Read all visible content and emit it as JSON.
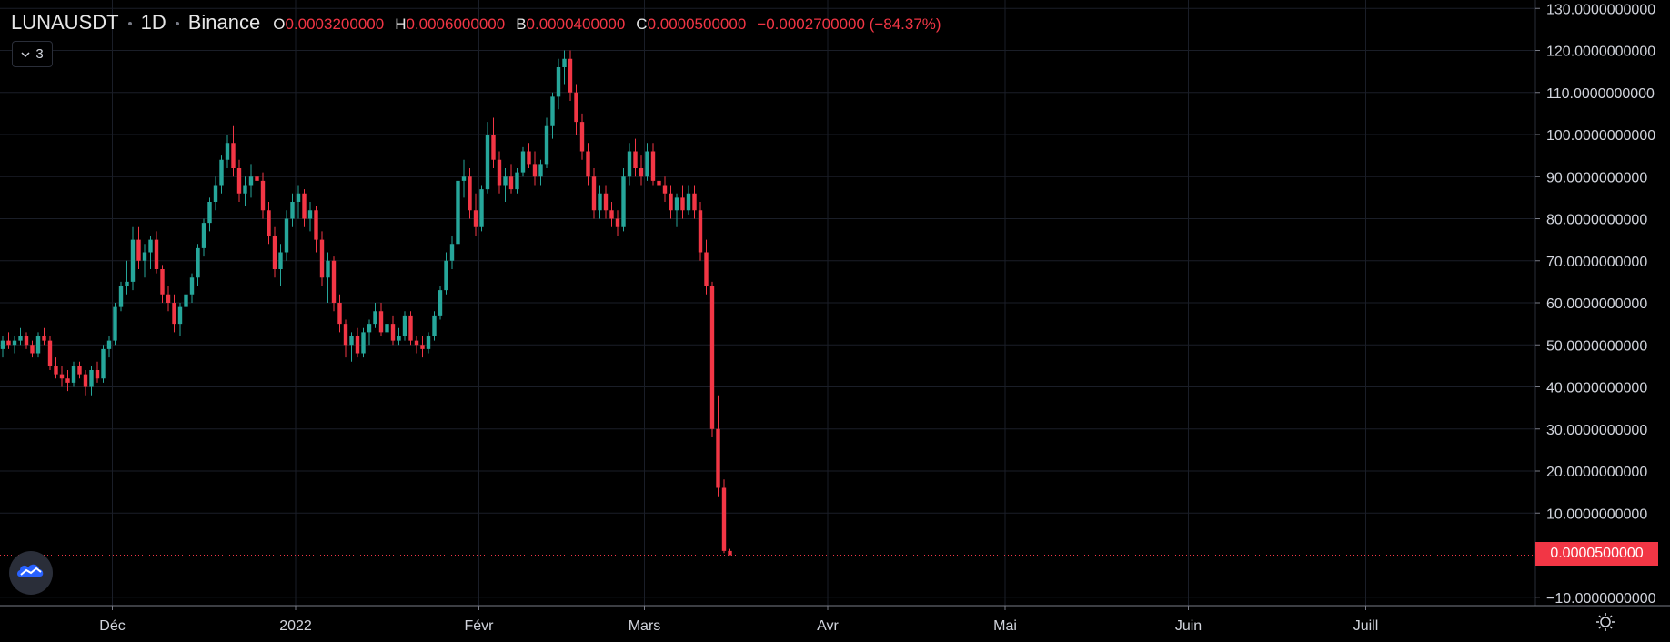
{
  "header": {
    "symbol": "LUNAUSDT",
    "interval": "1D",
    "exchange": "Binance",
    "open_label": "O",
    "open": "0.0003200000",
    "high_label": "H",
    "high": "0.0006000000",
    "low_label": "B",
    "low": "0.0000400000",
    "close_label": "C",
    "close": "0.0000500000",
    "change": "−0.0002700000 (−84.37%)"
  },
  "collapse_button": {
    "count": "3"
  },
  "last_price": "0.0000500000",
  "colors": {
    "up": "#26a69a",
    "down": "#f23645",
    "grid": "#1a1e28",
    "text": "#d1d4dc",
    "background": "#000000"
  },
  "icons": {
    "collapse": "chevron-down-icon",
    "logo": "tradingview-cloud-icon",
    "settings": "gear-icon"
  },
  "chart_data": {
    "type": "candlestick",
    "title": "LUNAUSDT · 1D · Binance",
    "ylim": [
      -12,
      132
    ],
    "x_range": [
      "2021-11-12",
      "2022-07-27"
    ],
    "y_ticks": [
      -10,
      10,
      20,
      30,
      40,
      50,
      60,
      70,
      80,
      90,
      100,
      110,
      120,
      130
    ],
    "y_tick_labels": [
      "−10.0000000000",
      "10.0000000000",
      "20.0000000000",
      "30.0000000000",
      "40.0000000000",
      "50.0000000000",
      "60.0000000000",
      "70.0000000000",
      "80.0000000000",
      "90.0000000000",
      "100.0000000000",
      "110.0000000000",
      "120.0000000000",
      "130.0000000000"
    ],
    "x_ticks": [
      "2021-12-01",
      "2022-01-01",
      "2022-02-01",
      "2022-03-01",
      "2022-04-01",
      "2022-05-01",
      "2022-06-01",
      "2022-07-01"
    ],
    "x_tick_labels": [
      "Déc",
      "2022",
      "Févr",
      "Mars",
      "Avr",
      "Mai",
      "Juin",
      "Juill"
    ],
    "grid": true,
    "start_date": "2021-11-12",
    "ohlc": [
      [
        49,
        52,
        47,
        51
      ],
      [
        51,
        53,
        49,
        50
      ],
      [
        50,
        52,
        48,
        51
      ],
      [
        51,
        54,
        50,
        52
      ],
      [
        52,
        53,
        49,
        50
      ],
      [
        50,
        51,
        47,
        48
      ],
      [
        48,
        53,
        47,
        52
      ],
      [
        52,
        54,
        50,
        51
      ],
      [
        51,
        52,
        44,
        45
      ],
      [
        45,
        47,
        42,
        43
      ],
      [
        43,
        45,
        40,
        42
      ],
      [
        42,
        44,
        39,
        41
      ],
      [
        41,
        46,
        40,
        45
      ],
      [
        45,
        46,
        42,
        43
      ],
      [
        43,
        44,
        38,
        40
      ],
      [
        40,
        45,
        38,
        44
      ],
      [
        44,
        46,
        41,
        42
      ],
      [
        42,
        50,
        41,
        49
      ],
      [
        49,
        52,
        47,
        51
      ],
      [
        51,
        60,
        50,
        59
      ],
      [
        59,
        65,
        58,
        64
      ],
      [
        64,
        70,
        62,
        65
      ],
      [
        65,
        78,
        63,
        75
      ],
      [
        75,
        78,
        68,
        70
      ],
      [
        70,
        74,
        66,
        72
      ],
      [
        72,
        76,
        68,
        75
      ],
      [
        75,
        77,
        67,
        68
      ],
      [
        68,
        69,
        60,
        62
      ],
      [
        62,
        64,
        58,
        60
      ],
      [
        60,
        62,
        53,
        55
      ],
      [
        55,
        60,
        52,
        59
      ],
      [
        59,
        63,
        57,
        62
      ],
      [
        62,
        67,
        60,
        66
      ],
      [
        66,
        74,
        64,
        73
      ],
      [
        73,
        80,
        71,
        79
      ],
      [
        79,
        85,
        77,
        84
      ],
      [
        84,
        90,
        82,
        88
      ],
      [
        88,
        95,
        86,
        94
      ],
      [
        94,
        100,
        92,
        98
      ],
      [
        98,
        102,
        90,
        92
      ],
      [
        92,
        94,
        84,
        86
      ],
      [
        86,
        90,
        83,
        88
      ],
      [
        88,
        93,
        85,
        90
      ],
      [
        90,
        94,
        86,
        89
      ],
      [
        89,
        91,
        80,
        82
      ],
      [
        82,
        84,
        74,
        76
      ],
      [
        76,
        78,
        66,
        68
      ],
      [
        68,
        74,
        64,
        72
      ],
      [
        72,
        82,
        70,
        80
      ],
      [
        80,
        86,
        78,
        84
      ],
      [
        84,
        88,
        80,
        86
      ],
      [
        86,
        87,
        78,
        80
      ],
      [
        80,
        84,
        77,
        82
      ],
      [
        82,
        83,
        72,
        75
      ],
      [
        75,
        77,
        64,
        66
      ],
      [
        66,
        72,
        60,
        70
      ],
      [
        70,
        71,
        58,
        60
      ],
      [
        60,
        62,
        53,
        55
      ],
      [
        55,
        56,
        47,
        50
      ],
      [
        50,
        53,
        46,
        52
      ],
      [
        52,
        54,
        47,
        48
      ],
      [
        48,
        54,
        47,
        53
      ],
      [
        53,
        56,
        50,
        55
      ],
      [
        55,
        60,
        54,
        58
      ],
      [
        58,
        60,
        52,
        53
      ],
      [
        53,
        56,
        51,
        55
      ],
      [
        55,
        57,
        50,
        51
      ],
      [
        51,
        54,
        50,
        52
      ],
      [
        52,
        58,
        51,
        57
      ],
      [
        57,
        58,
        50,
        51
      ],
      [
        51,
        52,
        48,
        50
      ],
      [
        50,
        52,
        47,
        49
      ],
      [
        49,
        53,
        48,
        52
      ],
      [
        52,
        58,
        51,
        57
      ],
      [
        57,
        64,
        56,
        63
      ],
      [
        63,
        72,
        62,
        70
      ],
      [
        70,
        76,
        68,
        74
      ],
      [
        74,
        90,
        73,
        89
      ],
      [
        89,
        94,
        85,
        90
      ],
      [
        90,
        92,
        80,
        82
      ],
      [
        82,
        86,
        76,
        78
      ],
      [
        78,
        88,
        77,
        87
      ],
      [
        87,
        103,
        86,
        100
      ],
      [
        100,
        104,
        92,
        94
      ],
      [
        94,
        96,
        86,
        88
      ],
      [
        88,
        92,
        84,
        90
      ],
      [
        90,
        93,
        86,
        87
      ],
      [
        87,
        92,
        86,
        91
      ],
      [
        91,
        97,
        90,
        96
      ],
      [
        96,
        98,
        92,
        93
      ],
      [
        93,
        96,
        88,
        90
      ],
      [
        90,
        94,
        88,
        93
      ],
      [
        93,
        104,
        92,
        102
      ],
      [
        102,
        110,
        99,
        109
      ],
      [
        109,
        118,
        106,
        116
      ],
      [
        116,
        120,
        112,
        118
      ],
      [
        118,
        120,
        108,
        110
      ],
      [
        110,
        112,
        100,
        103
      ],
      [
        103,
        105,
        94,
        96
      ],
      [
        96,
        98,
        88,
        90
      ],
      [
        90,
        92,
        80,
        82
      ],
      [
        82,
        88,
        80,
        86
      ],
      [
        86,
        88,
        80,
        82
      ],
      [
        82,
        84,
        78,
        80
      ],
      [
        80,
        82,
        76,
        78
      ],
      [
        78,
        92,
        77,
        90
      ],
      [
        90,
        98,
        88,
        96
      ],
      [
        96,
        99,
        90,
        92
      ],
      [
        92,
        95,
        88,
        90
      ],
      [
        90,
        98,
        89,
        96
      ],
      [
        96,
        98,
        88,
        89
      ],
      [
        89,
        91,
        86,
        88
      ],
      [
        88,
        90,
        84,
        86
      ],
      [
        86,
        88,
        80,
        82
      ],
      [
        82,
        86,
        78,
        85
      ],
      [
        85,
        88,
        80,
        82
      ],
      [
        82,
        88,
        81,
        86
      ],
      [
        86,
        88,
        80,
        82
      ],
      [
        82,
        84,
        70,
        72
      ],
      [
        72,
        75,
        62,
        64
      ],
      [
        64,
        65,
        28,
        30
      ],
      [
        30,
        38,
        14,
        16
      ],
      [
        16,
        18,
        0.5,
        1
      ],
      [
        1,
        1.5,
        0.0,
        0.0005
      ]
    ]
  }
}
